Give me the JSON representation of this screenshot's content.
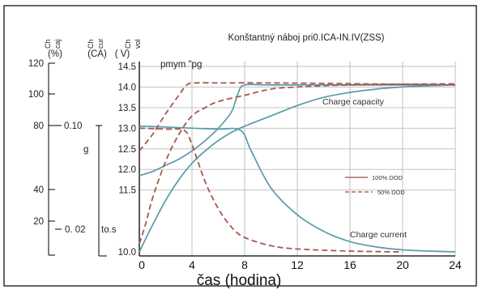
{
  "chart_data": {
    "type": "line",
    "title": "Konštantný náboj pri0.ICA-IN.IV(ZSS)",
    "xlabel": "čas (hodina)",
    "x_ticks": [
      0,
      4,
      8,
      12,
      16,
      20,
      24
    ],
    "xlim": [
      0,
      24
    ],
    "axes": [
      {
        "label_top": "Ch",
        "label_bottom": "caj",
        "unit": "(%)",
        "ticks": [
          "120",
          "100",
          "80",
          "40",
          "20"
        ]
      },
      {
        "label_top": "Ch",
        "label_bottom": "cur",
        "unit": "(CA)",
        "ticks": [
          "0.10",
          "0. 02"
        ]
      },
      {
        "label_top": "Ch",
        "label_bottom": "vol",
        "unit": "( V)",
        "ticks": [
          "14.5",
          "14.0",
          "13.5",
          "13.0",
          "12.5",
          "12.0",
          "11.5",
          "10.0"
        ],
        "ylim": [
          10.0,
          14.5
        ]
      }
    ],
    "stray_labels": {
      "g": "g",
      "to_s": "to.s",
      "pmym": "pmym \"pg"
    },
    "annotations": {
      "capacity": "Charge capacity",
      "current": "Charge current"
    },
    "legend": [
      {
        "name": "100% DOD",
        "color": "#a86a62",
        "style": "solid"
      },
      {
        "name": "50% DOD",
        "color": "#a86a62",
        "style": "dashed"
      }
    ],
    "legend_position": "right",
    "colors": {
      "curve": "#5a9aaa",
      "dashed": "#a5574e",
      "grid": "#bcbcbc"
    },
    "series": [
      {
        "name": "100% DOD",
        "kind": "voltage",
        "style": "solid",
        "points": [
          [
            0,
            11.85
          ],
          [
            1,
            11.95
          ],
          [
            2,
            12.1
          ],
          [
            3,
            12.25
          ],
          [
            4,
            12.45
          ],
          [
            5,
            12.7
          ],
          [
            6,
            13.0
          ],
          [
            7,
            13.4
          ],
          [
            7.5,
            13.85
          ],
          [
            8,
            14.05
          ],
          [
            10,
            14.05
          ],
          [
            16,
            14.05
          ],
          [
            24,
            14.05
          ]
        ]
      },
      {
        "name": "100% DOD",
        "kind": "capacity",
        "style": "solid",
        "points": [
          [
            0,
            10.0
          ],
          [
            1,
            10.65
          ],
          [
            2,
            11.25
          ],
          [
            3,
            11.75
          ],
          [
            4,
            12.15
          ],
          [
            5,
            12.45
          ],
          [
            6,
            12.7
          ],
          [
            7,
            12.9
          ],
          [
            8,
            13.05
          ],
          [
            10,
            13.3
          ],
          [
            12,
            13.55
          ],
          [
            14,
            13.75
          ],
          [
            16,
            13.87
          ],
          [
            18,
            13.95
          ],
          [
            20,
            14.0
          ],
          [
            22,
            14.03
          ],
          [
            24,
            14.05
          ]
        ]
      },
      {
        "name": "100% DOD",
        "kind": "current",
        "style": "solid",
        "points": [
          [
            0,
            13.05
          ],
          [
            2,
            13.03
          ],
          [
            4,
            13.0
          ],
          [
            6,
            12.98
          ],
          [
            7.7,
            12.95
          ],
          [
            8.5,
            12.45
          ],
          [
            10,
            11.55
          ],
          [
            12,
            10.9
          ],
          [
            14,
            10.5
          ],
          [
            16,
            10.25
          ],
          [
            18,
            10.12
          ],
          [
            20,
            10.05
          ],
          [
            22,
            10.02
          ],
          [
            24,
            10.0
          ]
        ]
      },
      {
        "name": "50% DOD",
        "kind": "voltage",
        "style": "dashed",
        "points": [
          [
            0,
            12.45
          ],
          [
            1,
            12.85
          ],
          [
            2,
            13.35
          ],
          [
            3,
            13.8
          ],
          [
            3.6,
            14.05
          ],
          [
            4.2,
            14.1
          ],
          [
            6,
            14.1
          ],
          [
            10,
            14.1
          ],
          [
            16,
            14.08
          ],
          [
            24,
            14.05
          ]
        ]
      },
      {
        "name": "50% DOD",
        "kind": "capacity",
        "style": "dashed",
        "points": [
          [
            0,
            10.2
          ],
          [
            0.5,
            10.7
          ],
          [
            1,
            11.3
          ],
          [
            2,
            12.2
          ],
          [
            3,
            12.85
          ],
          [
            4,
            13.3
          ],
          [
            5,
            13.5
          ],
          [
            6,
            13.65
          ],
          [
            8,
            13.8
          ],
          [
            10,
            13.95
          ],
          [
            12,
            14.0
          ],
          [
            16,
            14.05
          ],
          [
            24,
            14.08
          ]
        ]
      },
      {
        "name": "50% DOD",
        "kind": "current",
        "style": "dashed",
        "points": [
          [
            0,
            13.0
          ],
          [
            2,
            12.98
          ],
          [
            3.4,
            12.95
          ],
          [
            4,
            12.6
          ],
          [
            5,
            11.7
          ],
          [
            6,
            11.05
          ],
          [
            7,
            10.6
          ],
          [
            8,
            10.35
          ],
          [
            10,
            10.15
          ],
          [
            12,
            10.07
          ],
          [
            16,
            10.02
          ],
          [
            20,
            10.0
          ]
        ]
      }
    ]
  }
}
